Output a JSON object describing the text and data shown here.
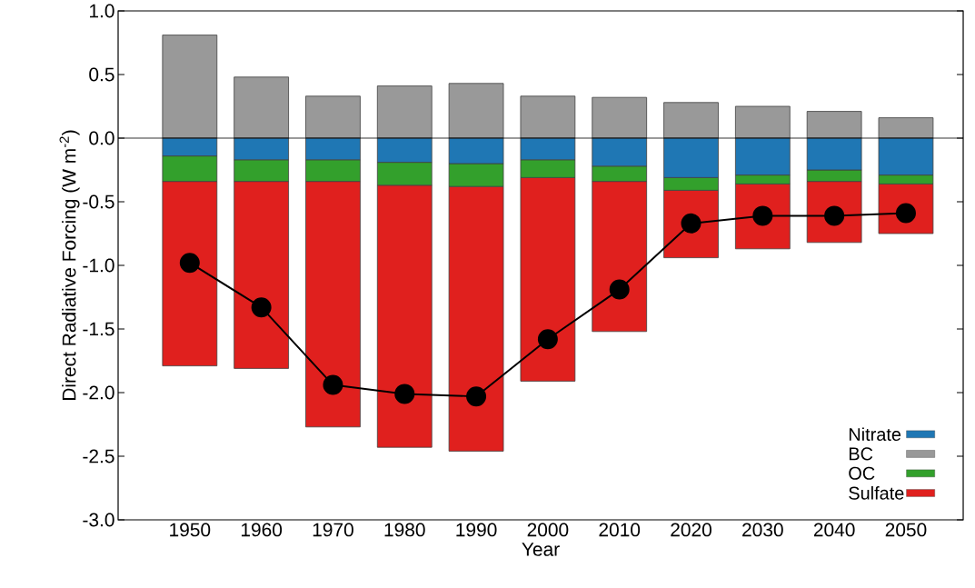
{
  "chart_data": {
    "type": "bar",
    "stacked": true,
    "xlabel": "Year",
    "ylabel": "Direct  Radiative Forcing (W m$^{-2}$)",
    "categories": [
      "1950",
      "1960",
      "1970",
      "1980",
      "1990",
      "2000",
      "2010",
      "2020",
      "2030",
      "2040",
      "2050"
    ],
    "series": [
      {
        "name": "Nitrate",
        "color": "#1f77b4",
        "values": [
          -0.14,
          -0.17,
          -0.17,
          -0.19,
          -0.2,
          -0.17,
          -0.22,
          -0.31,
          -0.29,
          -0.25,
          -0.29
        ]
      },
      {
        "name": "BC",
        "color": "#999999",
        "values": [
          0.81,
          0.48,
          0.33,
          0.41,
          0.43,
          0.33,
          0.32,
          0.28,
          0.25,
          0.21,
          0.16
        ]
      },
      {
        "name": "OC",
        "color": "#33a02c",
        "values": [
          -0.2,
          -0.17,
          -0.17,
          -0.18,
          -0.18,
          -0.14,
          -0.12,
          -0.1,
          -0.07,
          -0.09,
          -0.07
        ]
      },
      {
        "name": "Sulfate",
        "color": "#e0201e",
        "values": [
          -1.45,
          -1.47,
          -1.93,
          -2.06,
          -2.08,
          -1.6,
          -1.18,
          -0.53,
          -0.51,
          -0.48,
          -0.39
        ]
      },
      {
        "type": "line",
        "color": "#000000",
        "marker": "circle",
        "values": [
          -0.98,
          -1.33,
          -1.94,
          -2.01,
          -2.03,
          -1.58,
          -1.19,
          -0.67,
          -0.61,
          -0.61,
          -0.59
        ]
      }
    ],
    "ylim": [
      -3.0,
      1.0
    ],
    "yticks": [
      {
        "value": -3.0,
        "label": "-3.0"
      },
      {
        "value": -2.5,
        "label": "-2.5"
      },
      {
        "value": -2.0,
        "label": "-2.0"
      },
      {
        "value": -1.5,
        "label": "-1.5"
      },
      {
        "value": -1.0,
        "label": "-1.0"
      },
      {
        "value": -0.5,
        "label": "-0.5"
      },
      {
        "value": 0.0,
        "label": "0.0"
      },
      {
        "value": 0.5,
        "label": "0.5"
      },
      {
        "value": 1.0,
        "label": "1.0"
      }
    ],
    "ref_lines": [
      {
        "axis": "y",
        "value": 0,
        "color": "#000000"
      }
    ],
    "legend": "bottom right"
  }
}
